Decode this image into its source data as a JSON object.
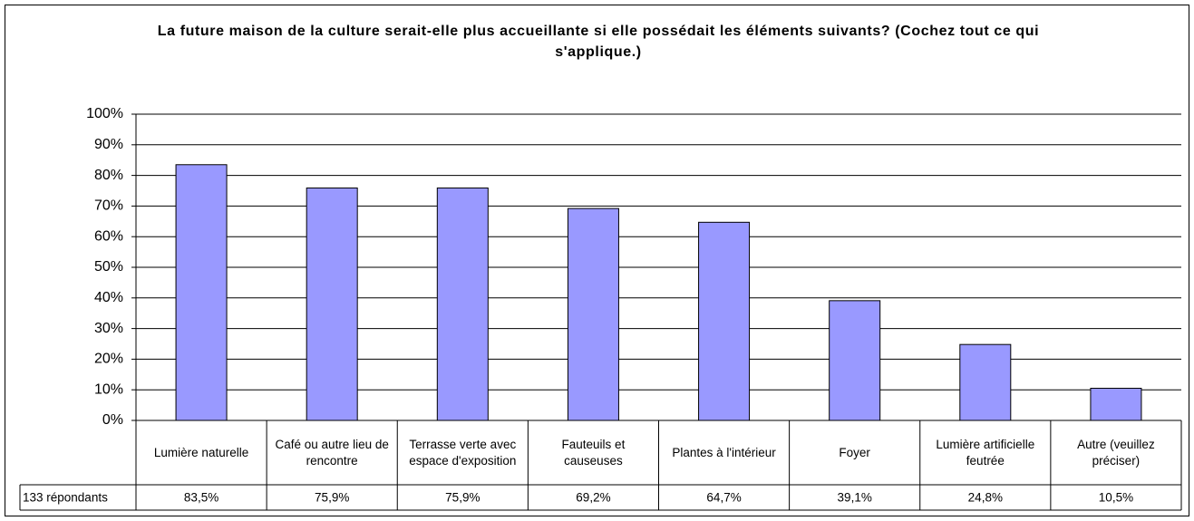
{
  "chart_data": {
    "type": "bar",
    "title": "La future maison de la culture serait-elle plus accueillante si elle possédait les éléments suivants? (Cochez tout ce qui s'applique.)",
    "categories": [
      "Lumière naturelle",
      "Café ou autre lieu de rencontre",
      "Terrasse verte avec espace d'exposition",
      "Fauteuils et causeuses",
      "Plantes à l'intérieur",
      "Foyer",
      "Lumière artificielle feutrée",
      "Autre (veuillez préciser)"
    ],
    "values": [
      83.5,
      75.9,
      75.9,
      69.2,
      64.7,
      39.1,
      24.8,
      10.5
    ],
    "value_labels": [
      "83,5%",
      "75,9%",
      "75,9%",
      "69,2%",
      "64,7%",
      "39,1%",
      "24,8%",
      "10,5%"
    ],
    "table_row_label": "133 répondants",
    "color": "#9999ff",
    "ylim": [
      0,
      100
    ],
    "yticks": [
      {
        "value": 0,
        "label": "0%"
      },
      {
        "value": 10,
        "label": "10%"
      },
      {
        "value": 20,
        "label": "20%"
      },
      {
        "value": 30,
        "label": "30%"
      },
      {
        "value": 40,
        "label": "40%"
      },
      {
        "value": 50,
        "label": "50%"
      },
      {
        "value": 60,
        "label": "60%"
      },
      {
        "value": 70,
        "label": "70%"
      },
      {
        "value": 80,
        "label": "80%"
      },
      {
        "value": 90,
        "label": "90%"
      },
      {
        "value": 100,
        "label": "100%"
      }
    ],
    "grid": true
  }
}
